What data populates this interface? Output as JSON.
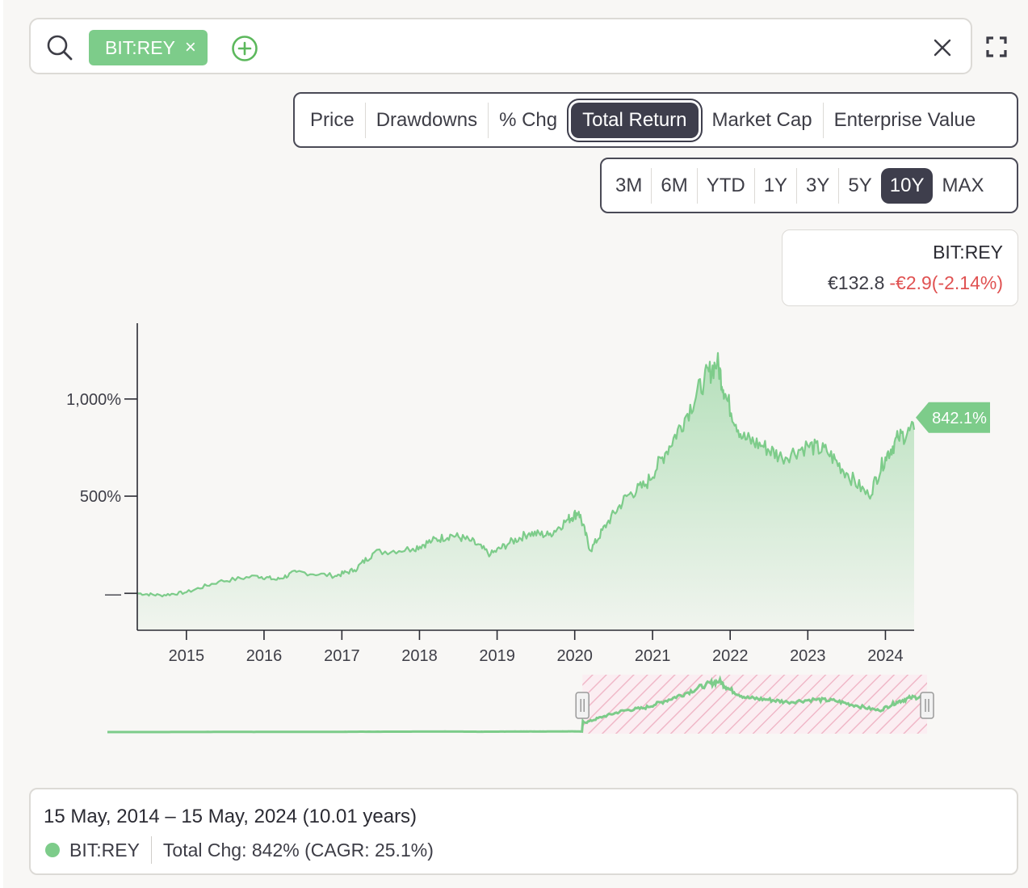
{
  "search": {
    "ticker_chip": "BIT:REY",
    "chip_remove_icon": "close-icon",
    "add_icon": "plus-circle-icon",
    "clear_icon": "close-icon",
    "search_icon": "search-icon",
    "expand_icon": "fullscreen-icon"
  },
  "metric_tabs": [
    "Price",
    "Drawdowns",
    "% Chg",
    "Total Return",
    "Market Cap",
    "Enterprise Value"
  ],
  "metric_active": "Total Return",
  "range_tabs": [
    "3M",
    "6M",
    "YTD",
    "1Y",
    "3Y",
    "5Y",
    "10Y",
    "MAX"
  ],
  "range_active": "10Y",
  "quote": {
    "symbol": "BIT:REY",
    "price": "€132.8",
    "change": "-€2.9(-2.14%)"
  },
  "colors": {
    "series": "#7dcc8a",
    "negative": "#e05252",
    "active_tab": "#3e3e4c",
    "brush_hatch": "#f0b8c8"
  },
  "chart_data": {
    "type": "area",
    "y_ticks": [
      {
        "value": 0,
        "label": "—"
      },
      {
        "value": 500,
        "label": "500%"
      },
      {
        "value": 1000,
        "label": "1,000%"
      }
    ],
    "x_ticks": [
      "2015",
      "2016",
      "2017",
      "2018",
      "2019",
      "2020",
      "2021",
      "2022",
      "2023",
      "2024"
    ],
    "x_range": [
      "2014-05-15",
      "2024-05-15"
    ],
    "y_range": [
      -190,
      1390
    ],
    "series": [
      {
        "points": [
          [
            "2014-05-15",
            0
          ],
          [
            "2014-09-01",
            -10
          ],
          [
            "2015-01-01",
            5
          ],
          [
            "2015-06-01",
            60
          ],
          [
            "2015-12-01",
            90
          ],
          [
            "2016-03-01",
            70
          ],
          [
            "2016-06-01",
            110
          ],
          [
            "2016-12-01",
            90
          ],
          [
            "2017-03-01",
            120
          ],
          [
            "2017-06-01",
            210
          ],
          [
            "2017-12-01",
            230
          ],
          [
            "2018-03-01",
            270
          ],
          [
            "2018-06-01",
            300
          ],
          [
            "2018-09-01",
            270
          ],
          [
            "2018-12-01",
            200
          ],
          [
            "2019-03-01",
            260
          ],
          [
            "2019-06-01",
            310
          ],
          [
            "2019-09-01",
            300
          ],
          [
            "2019-12-01",
            380
          ],
          [
            "2020-01-20",
            420
          ],
          [
            "2020-03-15",
            220
          ],
          [
            "2020-06-01",
            360
          ],
          [
            "2020-09-01",
            500
          ],
          [
            "2020-12-01",
            560
          ],
          [
            "2021-03-01",
            720
          ],
          [
            "2021-06-01",
            900
          ],
          [
            "2021-09-01",
            1100
          ],
          [
            "2021-11-01",
            1190
          ],
          [
            "2021-12-15",
            1000
          ],
          [
            "2022-03-01",
            800
          ],
          [
            "2022-06-01",
            760
          ],
          [
            "2022-09-01",
            700
          ],
          [
            "2023-01-01",
            760
          ],
          [
            "2023-04-01",
            730
          ],
          [
            "2023-07-01",
            620
          ],
          [
            "2023-10-15",
            500
          ],
          [
            "2024-01-01",
            700
          ],
          [
            "2024-03-01",
            800
          ],
          [
            "2024-05-15",
            842.1
          ]
        ]
      }
    ],
    "end_label": "842.1%",
    "grid": false,
    "navigator_window": [
      "2020-03-01",
      "2024-05-15"
    ]
  },
  "summary": {
    "date_range": "15 May, 2014 – 15 May, 2024 (10.01 years)",
    "symbol": "BIT:REY",
    "total_change": "Total Chg: 842% (CAGR: 25.1%)"
  }
}
